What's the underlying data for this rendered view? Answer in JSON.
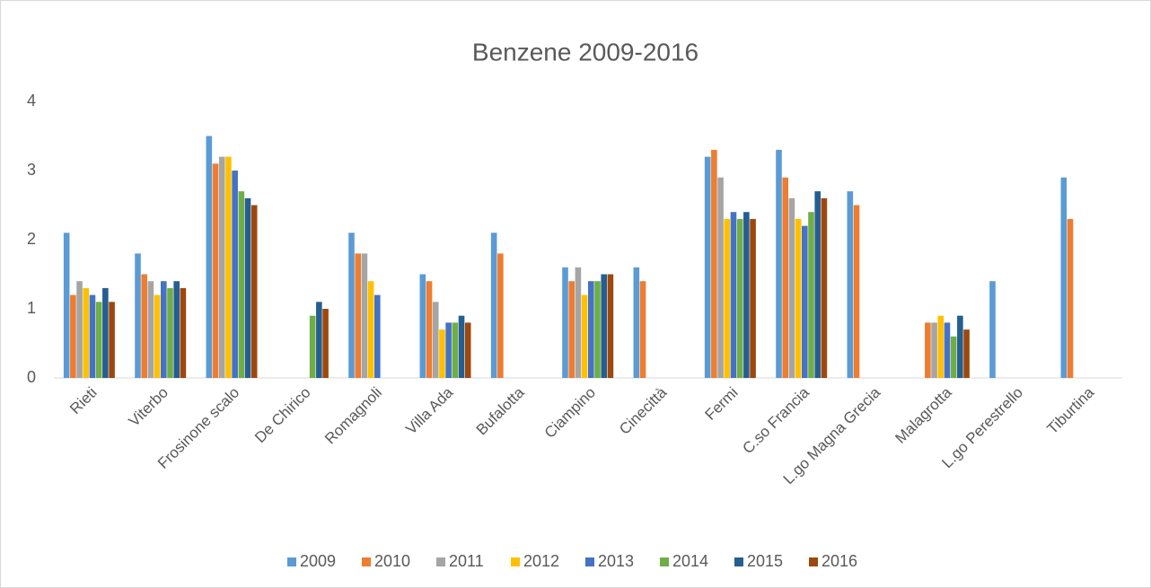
{
  "chart_data": {
    "type": "bar",
    "title": "Benzene 2009-2016",
    "categories": [
      "Rieti",
      "Viterbo",
      "Frosinone scalo",
      "De Chirico",
      "Romagnoli",
      "Villa Ada",
      "Bufalotta",
      "Ciampino",
      "Cinecittà",
      "Fermi",
      "C.so Francia",
      "L.go Magna Grecia",
      "Malagrotta",
      "L.go Perestrello",
      "Tiburtina"
    ],
    "series": [
      {
        "name": "2009",
        "color": "#5b9bd5",
        "values": [
          2.1,
          1.8,
          3.5,
          null,
          2.1,
          1.5,
          2.1,
          1.6,
          1.6,
          3.2,
          3.3,
          2.7,
          null,
          1.4,
          2.9
        ]
      },
      {
        "name": "2010",
        "color": "#ed7d31",
        "values": [
          1.2,
          1.5,
          3.1,
          null,
          1.8,
          1.4,
          1.8,
          1.4,
          1.4,
          3.3,
          2.9,
          2.5,
          0.8,
          null,
          2.3
        ]
      },
      {
        "name": "2011",
        "color": "#a5a5a5",
        "values": [
          1.4,
          1.4,
          3.2,
          null,
          1.8,
          1.1,
          null,
          1.6,
          null,
          2.9,
          2.6,
          null,
          0.8,
          null,
          null
        ]
      },
      {
        "name": "2012",
        "color": "#ffc000",
        "values": [
          1.3,
          1.2,
          3.2,
          null,
          1.4,
          0.7,
          null,
          1.2,
          null,
          2.3,
          2.3,
          null,
          0.9,
          null,
          null
        ]
      },
      {
        "name": "2013",
        "color": "#4472c4",
        "values": [
          1.2,
          1.4,
          3.0,
          null,
          1.2,
          0.8,
          null,
          1.4,
          null,
          2.4,
          2.2,
          null,
          0.8,
          null,
          null
        ]
      },
      {
        "name": "2014",
        "color": "#70ad47",
        "values": [
          1.1,
          1.3,
          2.7,
          0.9,
          null,
          0.8,
          null,
          1.4,
          null,
          2.3,
          2.4,
          null,
          0.6,
          null,
          null
        ]
      },
      {
        "name": "2015",
        "color": "#255e91",
        "values": [
          1.3,
          1.4,
          2.6,
          1.1,
          null,
          0.9,
          null,
          1.5,
          null,
          2.4,
          2.7,
          null,
          0.9,
          null,
          null
        ]
      },
      {
        "name": "2016",
        "color": "#9e480e",
        "values": [
          1.1,
          1.3,
          2.5,
          1.0,
          null,
          0.8,
          null,
          1.5,
          null,
          2.3,
          2.6,
          null,
          0.7,
          null,
          null
        ]
      }
    ],
    "ylim": [
      0,
      4
    ],
    "yticks": [
      0,
      1,
      2,
      3,
      4
    ],
    "grid": false
  }
}
